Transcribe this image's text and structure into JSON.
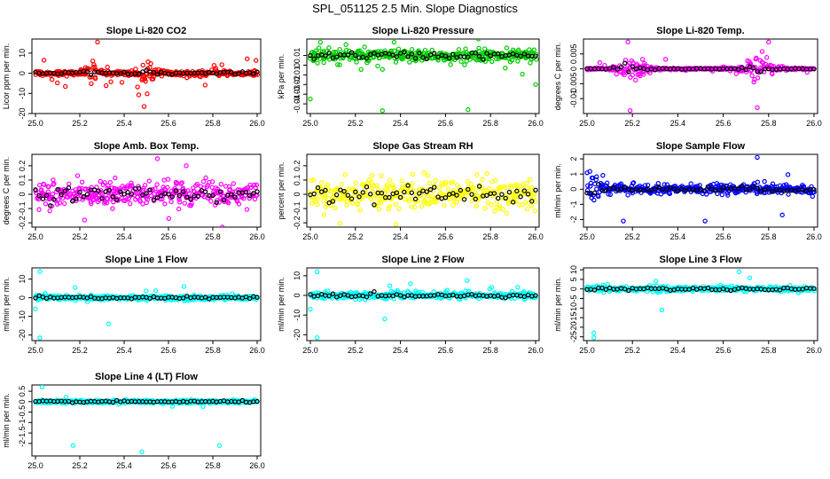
{
  "page": {
    "title": "SPL_051125  2.5 Min. Slope Diagnostics"
  },
  "x_axis": {
    "ticks": [
      25.0,
      25.2,
      25.4,
      25.6,
      25.8,
      26.0
    ],
    "tick_labels": [
      "25.0",
      "25.2",
      "25.4",
      "25.6",
      "25.8",
      "26.0"
    ],
    "range": [
      25.0,
      26.0
    ]
  },
  "colors": {
    "reference_series": "#000000"
  },
  "chart_data": [
    {
      "id": "co2",
      "type": "scatter",
      "title": "Slope Li-820 CO2",
      "ylabel": "Licor ppm per min.",
      "ylim": [
        -20,
        17
      ],
      "yticks": [
        -20,
        -10,
        0,
        10
      ],
      "color": "#ff0000",
      "spread": 1.2,
      "outlier_rate": 0.06,
      "outlier_spread": 6,
      "burst_centers": [
        25.25,
        25.5
      ],
      "burst_width": 0.03,
      "burst_scale": 3.5,
      "outliers": [
        {
          "x": 25.28,
          "y": 15.5
        },
        {
          "x": 25.49,
          "y": -16.5
        },
        {
          "x": 25.39,
          "y": -4.5
        }
      ]
    },
    {
      "id": "pressure",
      "type": "scatter",
      "title": "Slope Li-820 Pressure",
      "ylabel": "kPa per min.",
      "ylim": [
        -0.05,
        0.027
      ],
      "yticks": [
        -0.04,
        -0.03,
        -0.02,
        -0.01,
        0.0,
        0.01
      ],
      "color": "#00cc00",
      "center": 0.01,
      "spread": 0.006,
      "outlier_rate": 0.12,
      "outlier_spread": 0.01,
      "burst_centers": [],
      "burst_width": 0,
      "burst_scale": 1,
      "outliers": [
        {
          "x": 25.32,
          "y": -0.047
        },
        {
          "x": 25.7,
          "y": -0.046
        },
        {
          "x": 25.0,
          "y": -0.035
        },
        {
          "x": 26.0,
          "y": -0.02
        }
      ]
    },
    {
      "id": "temp",
      "type": "scatter",
      "title": "Slope Li-820 Temp.",
      "ylabel": "degrees C per min.",
      "ylim": [
        -0.015,
        0.01
      ],
      "yticks": [
        -0.01,
        -0.005,
        0.0,
        0.005
      ],
      "color": "#ff00ff",
      "spread": 0.0003,
      "outlier_rate": 0.02,
      "outlier_spread": 0.002,
      "burst_centers": [
        25.2,
        25.76
      ],
      "burst_width": 0.06,
      "burst_scale": 14,
      "outliers": [
        {
          "x": 25.19,
          "y": -0.014
        },
        {
          "x": 25.75,
          "y": -0.013
        },
        {
          "x": 25.18,
          "y": 0.009
        },
        {
          "x": 25.8,
          "y": 0.009
        }
      ]
    },
    {
      "id": "boxtemp",
      "type": "scatter",
      "title": "Slope Amb. Box Temp.",
      "ylabel": "degrees C per min.",
      "ylim": [
        -0.23,
        0.28
      ],
      "yticks": [
        -0.2,
        -0.1,
        0.0,
        0.1,
        0.2
      ],
      "color": "#ff00ff",
      "spread": 0.08,
      "outlier_rate": 0.05,
      "outlier_spread": 0.08,
      "burst_centers": [],
      "burst_width": 0,
      "burst_scale": 1,
      "outliers": [
        {
          "x": 25.55,
          "y": 0.25
        },
        {
          "x": 25.68,
          "y": 0.2
        }
      ]
    },
    {
      "id": "rh",
      "type": "scatter",
      "title": "Slope Gas Stream RH",
      "ylabel": "percent per min.",
      "ylim": [
        -0.23,
        0.28
      ],
      "yticks": [
        -0.2,
        -0.1,
        0.0,
        0.1,
        0.2
      ],
      "color": "#ffff00",
      "spread": 0.1,
      "outlier_rate": 0.04,
      "outlier_spread": 0.06,
      "burst_centers": [],
      "burst_width": 0,
      "burst_scale": 1,
      "outliers": [
        {
          "x": 25.38,
          "y": -0.21
        }
      ]
    },
    {
      "id": "sampleflow",
      "type": "scatter",
      "title": "Slope Sample Flow",
      "ylabel": "ml/min per min.",
      "ylim": [
        -2.5,
        2.3
      ],
      "yticks": [
        -2,
        -1,
        0,
        1,
        2
      ],
      "color": "#0000ff",
      "spread": 0.28,
      "outlier_rate": 0.04,
      "outlier_spread": 0.6,
      "burst_centers": [
        25.03
      ],
      "burst_width": 0.04,
      "burst_scale": 2.5,
      "outliers": [
        {
          "x": 25.75,
          "y": 2.1
        },
        {
          "x": 25.16,
          "y": -2.1
        },
        {
          "x": 25.52,
          "y": -2.1
        },
        {
          "x": 25.86,
          "y": -1.7
        }
      ]
    },
    {
      "id": "line1",
      "type": "scatter",
      "title": "Slope Line 1 Flow",
      "ylabel": "ml/min per min.",
      "ylim": [
        -23,
        16
      ],
      "yticks": [
        -20,
        -10,
        0,
        10
      ],
      "color": "#00ffff",
      "spread": 1.1,
      "outlier_rate": 0.03,
      "outlier_spread": 2.5,
      "burst_centers": [],
      "burst_width": 0,
      "burst_scale": 1,
      "outliers": [
        {
          "x": 25.02,
          "y": 14
        },
        {
          "x": 25.02,
          "y": -21.5
        },
        {
          "x": 25.33,
          "y": -14
        },
        {
          "x": 25.0,
          "y": -6
        },
        {
          "x": 25.67,
          "y": 6
        }
      ]
    },
    {
      "id": "line2",
      "type": "scatter",
      "title": "Slope Line 2 Flow",
      "ylabel": "ml/min per min.",
      "ylim": [
        -23,
        14
      ],
      "yticks": [
        -20,
        -10,
        0,
        10
      ],
      "color": "#00ffff",
      "spread": 1.5,
      "outlier_rate": 0.04,
      "outlier_spread": 3,
      "burst_centers": [],
      "burst_width": 0,
      "burst_scale": 1,
      "outliers": [
        {
          "x": 25.03,
          "y": 12
        },
        {
          "x": 25.03,
          "y": -21.5
        },
        {
          "x": 25.33,
          "y": -12
        },
        {
          "x": 25.0,
          "y": -7
        }
      ]
    },
    {
      "id": "line3",
      "type": "scatter",
      "title": "Slope Line 3 Flow",
      "ylabel": "ml/min per min.",
      "ylim": [
        -27,
        11
      ],
      "yticks": [
        -25,
        -20,
        -15,
        -10,
        -5,
        0,
        5,
        10
      ],
      "color": "#00ffff",
      "spread": 1.2,
      "outlier_rate": 0.04,
      "outlier_spread": 2.5,
      "burst_centers": [],
      "burst_width": 0,
      "burst_scale": 1,
      "outliers": [
        {
          "x": 25.03,
          "y": -23
        },
        {
          "x": 25.03,
          "y": -25.5
        },
        {
          "x": 25.33,
          "y": -11
        },
        {
          "x": 25.67,
          "y": 9
        }
      ]
    },
    {
      "id": "line4",
      "type": "scatter",
      "title": "Slope Line 4 (LT) Flow",
      "ylabel": "ml/min per min.",
      "ylim": [
        -2.6,
        0.8
      ],
      "yticks": [
        -2.0,
        -1.5,
        -1.0,
        -0.5,
        0.0,
        0.5
      ],
      "color": "#00ffff",
      "spread": 0.07,
      "outlier_rate": 0.03,
      "outlier_spread": 0.2,
      "burst_centers": [],
      "burst_width": 0,
      "burst_scale": 1,
      "outliers": [
        {
          "x": 25.03,
          "y": 0.7
        },
        {
          "x": 25.17,
          "y": -2.1
        },
        {
          "x": 25.48,
          "y": -2.4
        },
        {
          "x": 25.83,
          "y": -2.1
        }
      ]
    }
  ]
}
